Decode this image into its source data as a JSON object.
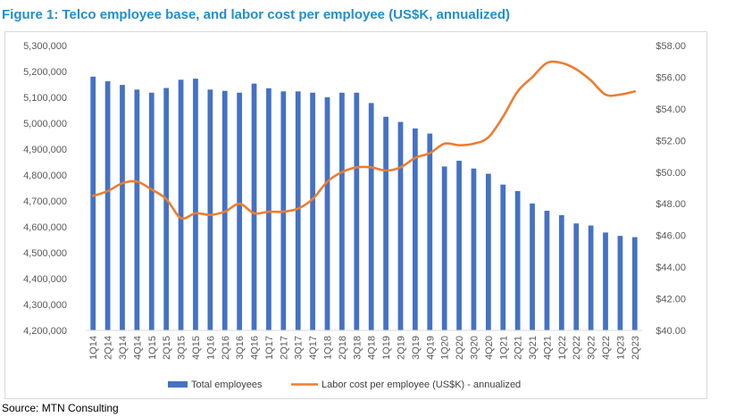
{
  "figure": {
    "title": "Figure 1: Telco employee base, and labor cost per employee (US$K, annualized)",
    "source": "Source: MTN Consulting"
  },
  "colors": {
    "title": "#1f8fd1",
    "bars": "#4472c4",
    "line": "#ed7d31",
    "grid": "#d9d9d9"
  },
  "chart_data": {
    "type": "bar",
    "categories": [
      "1Q14",
      "2Q14",
      "3Q14",
      "4Q14",
      "1Q15",
      "2Q15",
      "3Q15",
      "4Q15",
      "1Q16",
      "2Q16",
      "3Q16",
      "4Q16",
      "1Q17",
      "2Q17",
      "3Q17",
      "4Q17",
      "1Q18",
      "2Q18",
      "3Q18",
      "4Q18",
      "1Q19",
      "2Q19",
      "3Q19",
      "4Q19",
      "1Q20",
      "2Q20",
      "3Q20",
      "4Q20",
      "1Q21",
      "2Q21",
      "3Q21",
      "4Q21",
      "1Q22",
      "2Q22",
      "3Q22",
      "4Q22",
      "1Q23",
      "2Q23"
    ],
    "left_axis": {
      "ylim": [
        4200000,
        5300000
      ],
      "ticks": [
        "4,200,000",
        "4,300,000",
        "4,400,000",
        "4,500,000",
        "4,600,000",
        "4,700,000",
        "4,800,000",
        "4,900,000",
        "5,000,000",
        "5,100,000",
        "5,200,000",
        "5,300,000"
      ]
    },
    "right_axis": {
      "ylim": [
        40,
        58
      ],
      "ticks": [
        "$40.00",
        "$42.00",
        "$44.00",
        "$46.00",
        "$48.00",
        "$50.00",
        "$52.00",
        "$54.00",
        "$56.00",
        "$58.00"
      ]
    },
    "series": [
      {
        "name": "Total employees",
        "type": "bar",
        "axis": "left",
        "values": [
          5180000,
          5162000,
          5148000,
          5130000,
          5118000,
          5136000,
          5168000,
          5172000,
          5130000,
          5125000,
          5118000,
          5153000,
          5135000,
          5123000,
          5123000,
          5118000,
          5100000,
          5118000,
          5118000,
          5078000,
          5025000,
          5005000,
          4980000,
          4960000,
          4833000,
          4855000,
          4825000,
          4805000,
          4763000,
          4738000,
          4690000,
          4662000,
          4645000,
          4613000,
          4605000,
          4578000,
          4565000,
          4560000
        ]
      },
      {
        "name": "Labor cost per employee (US$K) - annualized",
        "type": "line",
        "axis": "right",
        "values": [
          48.5,
          48.8,
          49.3,
          49.4,
          48.9,
          48.3,
          47.1,
          47.4,
          47.3,
          47.5,
          48.0,
          47.4,
          47.5,
          47.5,
          47.7,
          48.3,
          49.4,
          50.0,
          50.3,
          50.3,
          50.1,
          50.3,
          50.9,
          51.2,
          51.8,
          51.7,
          51.8,
          52.2,
          53.5,
          55.1,
          56.0,
          56.9,
          56.9,
          56.5,
          55.8,
          54.9,
          54.9,
          55.1
        ]
      }
    ],
    "legend": "bottom",
    "grid": false
  }
}
